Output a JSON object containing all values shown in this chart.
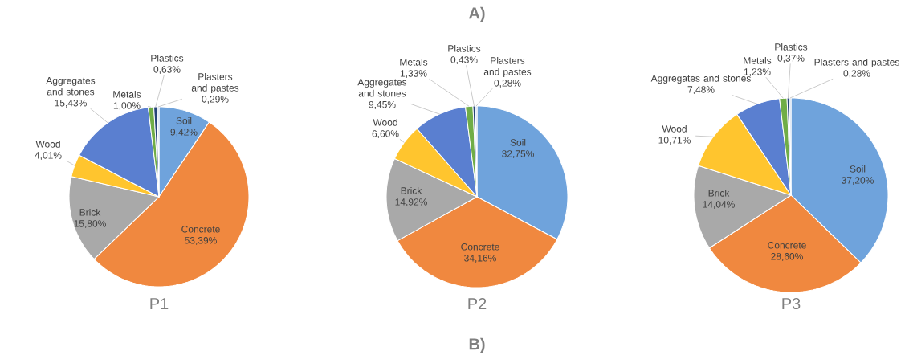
{
  "chart_data": [
    {
      "type": "pie",
      "title": "P1",
      "categories": [
        "Soil",
        "Concrete",
        "Brick",
        "Wood",
        "Aggregates and stones",
        "Metals",
        "Plastics",
        "Plasters and pastes"
      ],
      "values": [
        9.42,
        53.39,
        15.8,
        4.01,
        15.43,
        1.0,
        0.63,
        0.29
      ],
      "value_labels": [
        "9,42%",
        "53,39%",
        "15,80%",
        "4,01%",
        "15,43%",
        "1,00%",
        "0,63%",
        "0,29%"
      ],
      "colors": [
        "#6fa3dc",
        "#f0883f",
        "#a9a9a9",
        "#ffc52e",
        "#5a7fd0",
        "#70ad47",
        "#264478",
        "#c9d6ea"
      ]
    },
    {
      "type": "pie",
      "title": "P2",
      "categories": [
        "Soil",
        "Concrete",
        "Brick",
        "Wood",
        "Aggregates and stones",
        "Metals",
        "Plastics",
        "Plasters and pastes"
      ],
      "values": [
        32.75,
        34.16,
        14.92,
        6.6,
        9.45,
        1.33,
        0.43,
        0.28
      ],
      "value_labels": [
        "32,75%",
        "34,16%",
        "14,92%",
        "6,60%",
        "9,45%",
        "1,33%",
        "0,43%",
        "0,28%"
      ],
      "colors": [
        "#6fa3dc",
        "#f0883f",
        "#a9a9a9",
        "#ffc52e",
        "#5a7fd0",
        "#70ad47",
        "#264478",
        "#c9d6ea"
      ],
      "annotations": [
        "A)",
        "B)"
      ]
    },
    {
      "type": "pie",
      "title": "P3",
      "categories": [
        "Soil",
        "Concrete",
        "Brick",
        "Wood",
        "Aggregates and stones",
        "Metals",
        "Plastics",
        "Plasters and pastes"
      ],
      "values": [
        37.2,
        28.6,
        14.04,
        10.71,
        7.48,
        1.23,
        0.37,
        0.28
      ],
      "value_labels": [
        "37,20%",
        "28,60%",
        "14,04%",
        "10,71%",
        "7,48%",
        "1,23%",
        "0,37%",
        "0,28%"
      ],
      "colors": [
        "#6fa3dc",
        "#f0883f",
        "#a9a9a9",
        "#ffc52e",
        "#5a7fd0",
        "#70ad47",
        "#264478",
        "#c9d6ea"
      ]
    }
  ]
}
